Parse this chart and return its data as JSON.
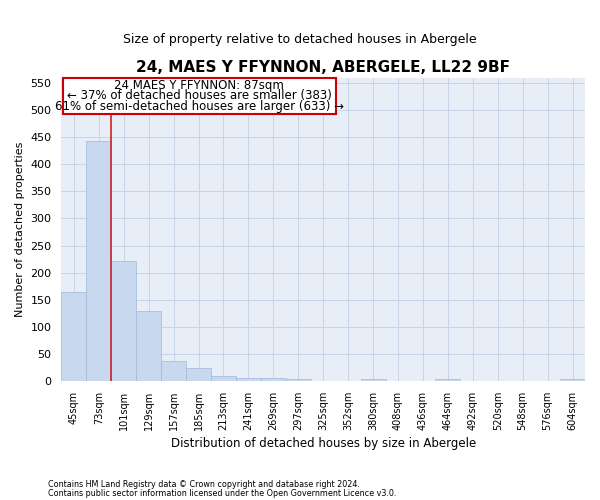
{
  "title": "24, MAES Y FFYNNON, ABERGELE, LL22 9BF",
  "subtitle": "Size of property relative to detached houses in Abergele",
  "xlabel": "Distribution of detached houses by size in Abergele",
  "ylabel": "Number of detached properties",
  "footer_line1": "Contains HM Land Registry data © Crown copyright and database right 2024.",
  "footer_line2": "Contains public sector information licensed under the Open Government Licence v3.0.",
  "bar_labels": [
    "45sqm",
    "73sqm",
    "101sqm",
    "129sqm",
    "157sqm",
    "185sqm",
    "213sqm",
    "241sqm",
    "269sqm",
    "297sqm",
    "325sqm",
    "352sqm",
    "380sqm",
    "408sqm",
    "436sqm",
    "464sqm",
    "492sqm",
    "520sqm",
    "548sqm",
    "576sqm",
    "604sqm"
  ],
  "bar_values": [
    165,
    443,
    221,
    130,
    37,
    24,
    10,
    5,
    5,
    4,
    0,
    0,
    4,
    0,
    0,
    4,
    0,
    0,
    0,
    0,
    4
  ],
  "bar_color": "#c8d8ee",
  "bar_edgecolor": "#a0b8d8",
  "ylim": [
    0,
    560
  ],
  "yticks": [
    0,
    50,
    100,
    150,
    200,
    250,
    300,
    350,
    400,
    450,
    500,
    550
  ],
  "red_line_x": 1.5,
  "annotation_title": "24 MAES Y FFYNNON: 87sqm",
  "annotation_line1": "← 37% of detached houses are smaller (383)",
  "annotation_line2": "61% of semi-detached houses are larger (633) →",
  "annotation_box_color": "#ffffff",
  "annotation_box_edgecolor": "#cc0000",
  "grid_color": "#c8d4e8",
  "background_color": "#e8eef8",
  "title_fontsize": 11,
  "subtitle_fontsize": 9,
  "annotation_fontsize": 8.5
}
